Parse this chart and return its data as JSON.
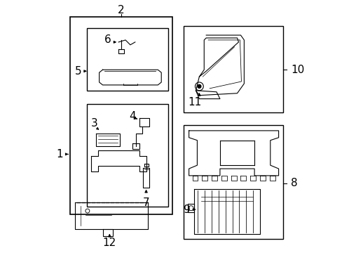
{
  "bg_color": "#ffffff",
  "fig_width": 4.89,
  "fig_height": 3.6,
  "dpi": 100,
  "lc": "#000000",
  "lw": 0.8
}
